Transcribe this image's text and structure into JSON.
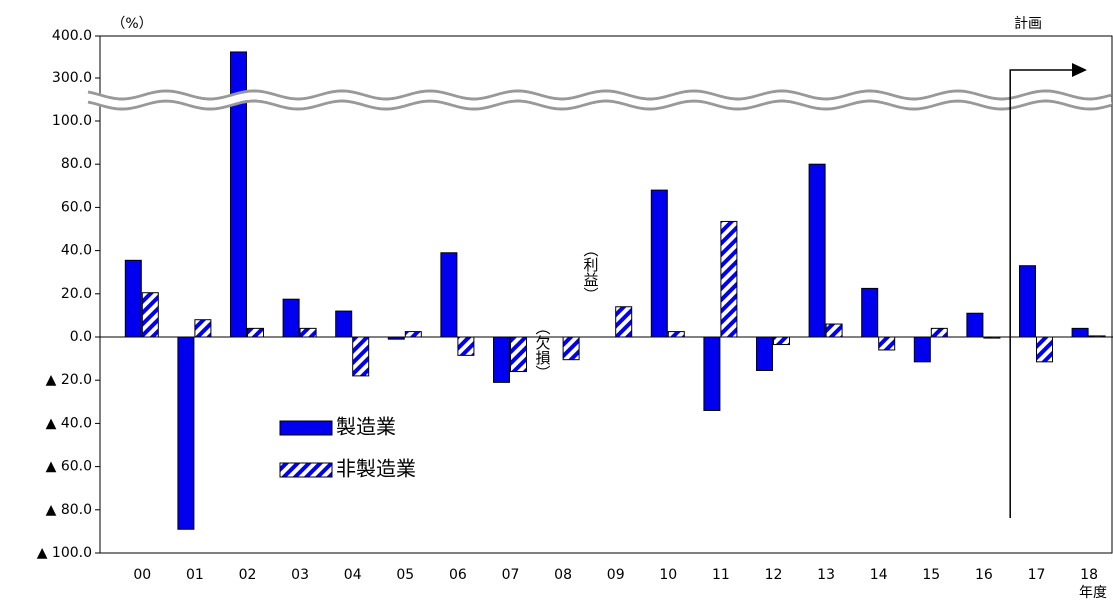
{
  "chart_data": {
    "type": "bar",
    "categories": [
      "00",
      "01",
      "02",
      "03",
      "04",
      "05",
      "06",
      "07",
      "08",
      "09",
      "10",
      "11",
      "12",
      "13",
      "14",
      "15",
      "16",
      "17",
      "18"
    ],
    "series": [
      {
        "name": "製造業",
        "color": "#0000ee",
        "pattern": "solid",
        "values": [
          35.5,
          -89,
          362,
          17.5,
          12,
          -1,
          39,
          -21,
          null,
          null,
          68,
          -34,
          -15.5,
          80,
          22.5,
          -11.5,
          11,
          33,
          4
        ]
      },
      {
        "name": "非製造業",
        "color": "#0000ee",
        "pattern": "hatch",
        "values": [
          20.5,
          8,
          4,
          4,
          -18,
          2.5,
          -8.5,
          -16,
          -10.5,
          14,
          2.5,
          53.5,
          -3.5,
          6,
          -6,
          4,
          -0.5,
          -11.5,
          0.5
        ]
      }
    ],
    "ylim": [
      -100,
      400
    ],
    "axis_break": [
      100,
      300
    ],
    "yticks": [
      {
        "value": 400,
        "label": "400.0"
      },
      {
        "value": 300,
        "label": "300.0"
      },
      {
        "value": 100,
        "label": "100.0"
      },
      {
        "value": 80,
        "label": "80.0"
      },
      {
        "value": 60,
        "label": "60.0"
      },
      {
        "value": 40,
        "label": "40.0"
      },
      {
        "value": 20,
        "label": "20.0"
      },
      {
        "value": 0,
        "label": "0.0"
      },
      {
        "value": -20,
        "label": "▲ 20.0"
      },
      {
        "value": -40,
        "label": "▲ 40.0"
      },
      {
        "value": -60,
        "label": "▲ 60.0"
      },
      {
        "value": -80,
        "label": "▲ 80.0"
      },
      {
        "value": -100,
        "label": "▲ 100.0"
      }
    ],
    "y_unit": "（%）",
    "x_label": "年度",
    "plan_label": "計画",
    "profit_label": "（利益）",
    "loss_label": "（欠損）",
    "legend": "center-left"
  }
}
